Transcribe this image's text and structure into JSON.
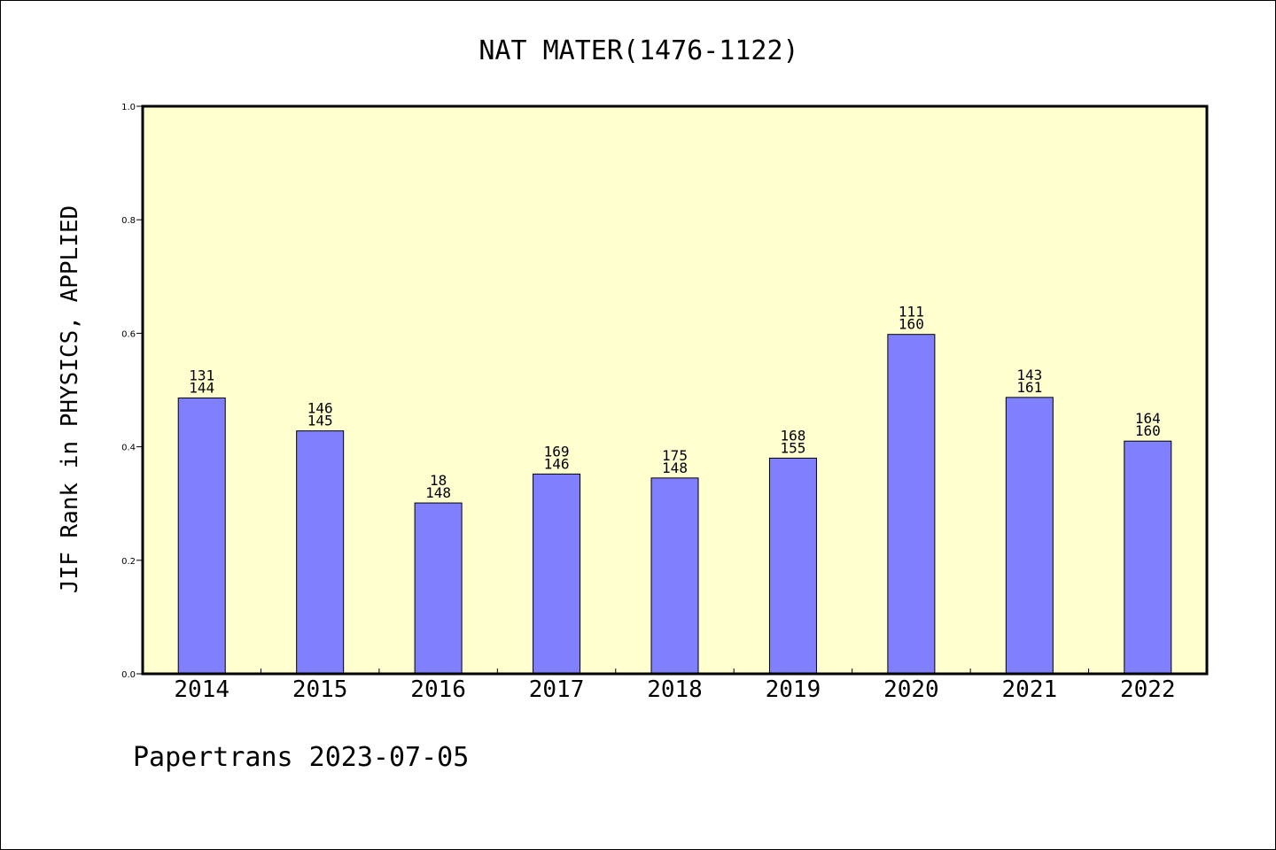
{
  "chart_data": {
    "type": "bar",
    "title": "NAT MATER(1476-1122)",
    "xlabel": "",
    "ylabel": "JIF Rank in PHYSICS, APPLIED",
    "ylim": [
      0,
      1.0
    ],
    "yticks": [
      "0.0",
      "0.2",
      "0.4",
      "0.6",
      "0.8",
      "1.0"
    ],
    "grid": false,
    "colors": {
      "plot_background": "#ffffd0",
      "bar": "#8080ff",
      "bar_edge": "#000000"
    },
    "categories": [
      "2014",
      "2015",
      "2016",
      "2017",
      "2018",
      "2019",
      "2020",
      "2021",
      "2022"
    ],
    "values": [
      0.486,
      0.428,
      0.301,
      0.352,
      0.345,
      0.38,
      0.598,
      0.487,
      0.41
    ],
    "data_labels": [
      [
        "131",
        "144"
      ],
      [
        "146",
        "145"
      ],
      [
        "18",
        "148"
      ],
      [
        "169",
        "146"
      ],
      [
        "175",
        "148"
      ],
      [
        "168",
        "155"
      ],
      [
        "111",
        "160"
      ],
      [
        "143",
        "161"
      ],
      [
        "164",
        "160"
      ]
    ]
  },
  "footer": "Papertrans 2023-07-05"
}
